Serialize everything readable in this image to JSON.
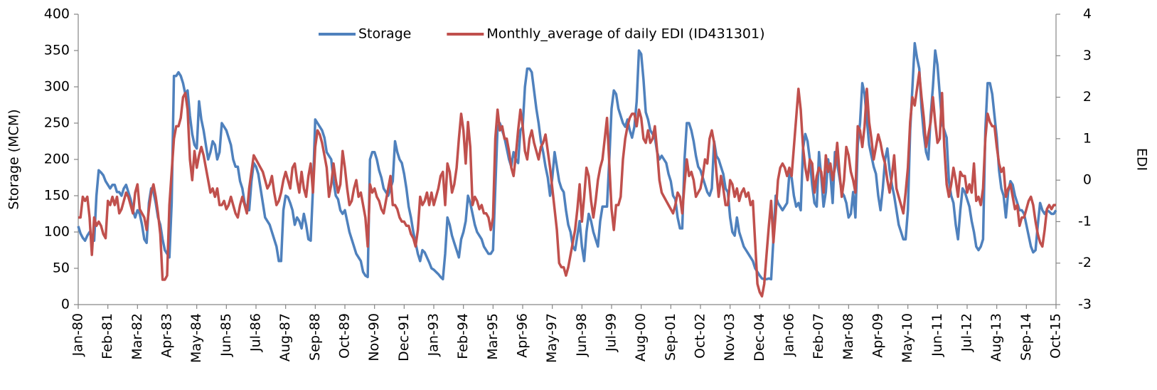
{
  "chart_data": {
    "type": "line",
    "ylabel": "Storage (MCM)",
    "y2label": "EDI",
    "legend": "top",
    "categories": [
      "Jan-80",
      null,
      null,
      null,
      null,
      null,
      null,
      null,
      null,
      null,
      null,
      null,
      null,
      "Feb-81",
      null,
      null,
      null,
      null,
      null,
      null,
      null,
      null,
      null,
      null,
      null,
      null,
      "Mar-82",
      null,
      null,
      null,
      null,
      null,
      null,
      null,
      null,
      null,
      null,
      null,
      null,
      "Apr-83",
      null,
      null,
      null,
      null,
      null,
      null,
      null,
      null,
      null,
      null,
      null,
      null,
      "May-84",
      null,
      null,
      null,
      null,
      null,
      null,
      null,
      null,
      null,
      null,
      null,
      null,
      "Jun-85",
      null,
      null,
      null,
      null,
      null,
      null,
      null,
      null,
      null,
      null,
      null,
      null,
      "Jul-86",
      null,
      null,
      null,
      null,
      null,
      null,
      null,
      null,
      null,
      null,
      null,
      null,
      "Aug-87",
      null,
      null,
      null,
      null,
      null,
      null,
      null,
      null,
      null,
      null,
      null,
      null,
      "Sep-88",
      null,
      null,
      null,
      null,
      null,
      null,
      null,
      null,
      null,
      null,
      null,
      null,
      "Oct-89",
      null,
      null,
      null,
      null,
      null,
      null,
      null,
      null,
      null,
      null,
      null,
      null,
      "Nov-90",
      null,
      null,
      null,
      null,
      null,
      null,
      null,
      null,
      null,
      null,
      null,
      null,
      "Dec-91",
      null,
      null,
      null,
      null,
      null,
      null,
      null,
      null,
      null,
      null,
      null,
      null,
      "Jan-93",
      null,
      null,
      null,
      null,
      null,
      null,
      null,
      null,
      null,
      null,
      null,
      null,
      "Feb-94",
      null,
      null,
      null,
      null,
      null,
      null,
      null,
      null,
      null,
      null,
      null,
      null,
      "Mar-95",
      null,
      null,
      null,
      null,
      null,
      null,
      null,
      null,
      null,
      null,
      null,
      null,
      "Apr-96",
      null,
      null,
      null,
      null,
      null,
      null,
      null,
      null,
      null,
      null,
      null,
      null,
      "May-97",
      null,
      null,
      null,
      null,
      null,
      null,
      null,
      null,
      null,
      null,
      null,
      null,
      "Jun-98",
      null,
      null,
      null,
      null,
      null,
      null,
      null,
      null,
      null,
      null,
      null,
      null,
      "Jul-99",
      null,
      null,
      null,
      null,
      null,
      null,
      null,
      null,
      null,
      null,
      null,
      null,
      "Aug-00",
      null,
      null,
      null,
      null,
      null,
      null,
      null,
      null,
      null,
      null,
      null,
      null,
      "Sep-01",
      null,
      null,
      null,
      null,
      null,
      null,
      null,
      null,
      null,
      null,
      null,
      null,
      "Oct-02",
      null,
      null,
      null,
      null,
      null,
      null,
      null,
      null,
      null,
      null,
      null,
      null,
      "Nov-03",
      null,
      null,
      null,
      null,
      null,
      null,
      null,
      null,
      null,
      null,
      null,
      null,
      "Dec-04",
      null,
      null,
      null,
      null,
      null,
      null,
      null,
      null,
      null,
      null,
      null,
      null,
      "Jan-06",
      null,
      null,
      null,
      null,
      null,
      null,
      null,
      null,
      null,
      null,
      null,
      null,
      "Feb-07",
      null,
      null,
      null,
      null,
      null,
      null,
      null,
      null,
      null,
      null,
      null,
      null,
      "Mar-08",
      null,
      null,
      null,
      null,
      null,
      null,
      null,
      null,
      null,
      null,
      null,
      null,
      "Apr-09",
      null,
      null,
      null,
      null,
      null,
      null,
      null,
      null,
      null,
      null,
      null,
      null,
      "May-10",
      null,
      null,
      null,
      null,
      null,
      null,
      null,
      null,
      null,
      null,
      null,
      null,
      "Jun-11",
      null,
      null,
      null,
      null,
      null,
      null,
      null,
      null,
      null,
      null,
      null,
      null,
      "Jul-12",
      null,
      null,
      null,
      null,
      null,
      null,
      null,
      null,
      null,
      null,
      null,
      null,
      "Aug-13",
      null,
      null,
      null,
      null,
      null,
      null,
      null,
      null,
      null,
      null,
      null,
      null,
      "Sep-14",
      null,
      null,
      null,
      null,
      null,
      null,
      null,
      null,
      null,
      null,
      null,
      null,
      "Oct-15"
    ],
    "series": [
      {
        "name": "Storage",
        "color": "#4f81bd",
        "values": [
          108,
          98,
          92,
          88,
          95,
          100,
          92,
          88,
          150,
          185,
          182,
          178,
          170,
          165,
          160,
          165,
          165,
          155,
          155,
          150,
          160,
          165,
          155,
          145,
          130,
          120,
          130,
          125,
          110,
          90,
          85,
          140,
          160,
          155,
          140,
          120,
          110,
          90,
          75,
          70,
          65,
          140,
          315,
          315,
          320,
          315,
          305,
          290,
          295,
          260,
          235,
          220,
          215,
          280,
          255,
          240,
          220,
          200,
          210,
          225,
          220,
          200,
          210,
          250,
          245,
          240,
          230,
          220,
          200,
          190,
          190,
          170,
          160,
          140,
          130,
          130,
          170,
          195,
          190,
          180,
          160,
          140,
          120,
          115,
          110,
          100,
          90,
          80,
          60,
          60,
          130,
          150,
          148,
          140,
          130,
          110,
          120,
          115,
          105,
          125,
          110,
          90,
          88,
          160,
          255,
          250,
          245,
          240,
          230,
          210,
          205,
          200,
          170,
          150,
          145,
          130,
          125,
          130,
          115,
          100,
          90,
          80,
          70,
          65,
          60,
          45,
          40,
          38,
          200,
          210,
          210,
          200,
          185,
          175,
          160,
          155,
          150,
          160,
          170,
          225,
          210,
          200,
          195,
          180,
          160,
          135,
          120,
          100,
          85,
          70,
          60,
          75,
          72,
          65,
          58,
          50,
          48,
          45,
          42,
          38,
          35,
          70,
          120,
          110,
          95,
          85,
          75,
          65,
          90,
          100,
          115,
          150,
          140,
          125,
          110,
          100,
          95,
          90,
          80,
          75,
          70,
          70,
          75,
          160,
          245,
          250,
          240,
          230,
          215,
          200,
          190,
          210,
          200,
          195,
          240,
          245,
          300,
          325,
          325,
          320,
          295,
          270,
          250,
          225,
          210,
          190,
          175,
          150,
          175,
          210,
          190,
          170,
          160,
          155,
          130,
          110,
          100,
          80,
          75,
          95,
          115,
          80,
          60,
          100,
          125,
          115,
          100,
          90,
          80,
          115,
          135,
          135,
          135,
          200,
          270,
          295,
          290,
          270,
          260,
          250,
          245,
          255,
          240,
          230,
          245,
          280,
          350,
          345,
          310,
          265,
          255,
          240,
          235,
          230,
          210,
          200,
          205,
          200,
          195,
          180,
          170,
          150,
          145,
          120,
          105,
          105,
          200,
          250,
          250,
          240,
          225,
          205,
          190,
          185,
          175,
          165,
          155,
          150,
          160,
          225,
          205,
          200,
          190,
          180,
          160,
          155,
          120,
          100,
          95,
          120,
          100,
          90,
          80,
          75,
          70,
          65,
          60,
          50,
          45,
          40,
          36,
          35,
          35,
          36,
          35,
          90,
          150,
          140,
          135,
          130,
          135,
          140,
          180,
          175,
          150,
          135,
          140,
          130,
          215,
          235,
          225,
          200,
          165,
          140,
          135,
          210,
          175,
          135,
          155,
          200,
          180,
          140,
          210,
          195,
          175,
          155,
          150,
          140,
          120,
          125,
          155,
          120,
          220,
          250,
          305,
          290,
          255,
          220,
          205,
          190,
          180,
          150,
          130,
          160,
          200,
          215,
          185,
          165,
          150,
          130,
          110,
          100,
          90,
          90,
          130,
          240,
          300,
          360,
          340,
          325,
          270,
          235,
          210,
          200,
          260,
          300,
          350,
          330,
          290,
          250,
          240,
          230,
          170,
          150,
          140,
          110,
          90,
          130,
          160,
          155,
          145,
          135,
          115,
          100,
          80,
          75,
          80,
          90,
          240,
          305,
          305,
          290,
          260,
          230,
          185,
          160,
          150,
          120,
          155,
          170,
          165,
          150,
          140,
          130,
          130,
          125,
          110,
          95,
          80,
          72,
          75,
          110,
          140,
          130,
          125,
          130,
          128,
          125,
          125,
          130
        ]
      },
      {
        "name": "Monthly_average of daily EDI (ID431301)",
        "color": "#c0504d",
        "axis": "y2",
        "values": [
          -0.9,
          -0.9,
          -0.4,
          -0.5,
          -0.4,
          -0.9,
          -1.8,
          -0.9,
          -1.1,
          -1.0,
          -1.1,
          -1.3,
          -1.4,
          -0.5,
          -0.6,
          -0.4,
          -0.6,
          -0.4,
          -0.8,
          -0.7,
          -0.5,
          -0.3,
          -0.4,
          -0.6,
          -0.8,
          -0.3,
          -0.1,
          -0.7,
          -0.8,
          -0.9,
          -1.2,
          -0.7,
          -0.3,
          -0.1,
          -0.4,
          -0.8,
          -1.3,
          -2.4,
          -2.4,
          -2.3,
          -0.6,
          0.2,
          1.0,
          1.3,
          1.3,
          1.5,
          2.0,
          2.1,
          1.7,
          0.5,
          0.0,
          0.7,
          0.3,
          0.6,
          0.8,
          0.6,
          0.3,
          0.0,
          -0.3,
          -0.2,
          -0.4,
          -0.2,
          -0.6,
          -0.6,
          -0.5,
          -0.7,
          -0.6,
          -0.4,
          -0.6,
          -0.8,
          -0.9,
          -0.6,
          -0.4,
          -0.6,
          -0.8,
          -0.2,
          0.2,
          0.6,
          0.5,
          0.4,
          0.3,
          0.2,
          0.0,
          -0.2,
          -0.1,
          0.1,
          -0.3,
          -0.6,
          -0.5,
          -0.3,
          0.0,
          0.2,
          0.0,
          -0.2,
          0.3,
          0.4,
          0.0,
          -0.3,
          0.2,
          -0.2,
          -0.4,
          0.1,
          0.4,
          -0.3,
          0.8,
          1.2,
          1.1,
          0.9,
          0.6,
          0.3,
          -0.4,
          -0.1,
          0.4,
          0.0,
          -0.3,
          -0.1,
          0.7,
          0.3,
          -0.2,
          -0.6,
          -0.5,
          -0.2,
          0.0,
          -0.4,
          -0.3,
          -0.6,
          -0.9,
          -1.6,
          -0.1,
          -0.3,
          -0.2,
          -0.4,
          -0.5,
          -0.7,
          -0.8,
          -0.5,
          -0.2,
          0.1,
          -0.6,
          -0.6,
          -0.7,
          -0.9,
          -1.0,
          -1.0,
          -1.1,
          -1.1,
          -1.3,
          -1.4,
          -1.6,
          -1.2,
          -0.4,
          -0.6,
          -0.5,
          -0.3,
          -0.6,
          -0.3,
          -0.6,
          -0.4,
          -0.2,
          0.1,
          0.2,
          -0.6,
          0.4,
          0.2,
          -0.3,
          -0.1,
          0.3,
          1.0,
          1.6,
          1.2,
          0.4,
          1.4,
          0.8,
          -0.6,
          -0.4,
          -0.5,
          -0.7,
          -0.6,
          -0.8,
          -0.8,
          -0.9,
          -1.2,
          -0.9,
          1.0,
          1.7,
          1.2,
          1.3,
          1.0,
          1.0,
          0.7,
          0.3,
          0.1,
          0.6,
          1.2,
          1.7,
          1.3,
          0.7,
          0.5,
          1.0,
          1.2,
          0.9,
          0.7,
          0.5,
          0.8,
          0.9,
          1.1,
          0.7,
          0.3,
          -0.2,
          -0.7,
          -1.2,
          -2.0,
          -2.1,
          -2.1,
          -2.3,
          -2.1,
          -1.8,
          -1.5,
          -1.2,
          -0.7,
          -0.1,
          -1.0,
          -0.4,
          0.3,
          0.1,
          -0.5,
          -0.9,
          -0.5,
          0.0,
          0.3,
          0.5,
          1.0,
          1.5,
          0.4,
          -0.7,
          -1.2,
          -0.6,
          -0.6,
          -0.4,
          0.5,
          1.0,
          1.3,
          1.5,
          1.6,
          1.6,
          1.3,
          1.7,
          1.5,
          1.0,
          0.9,
          1.2,
          0.9,
          1.0,
          1.3,
          0.7,
          0.0,
          -0.3,
          -0.4,
          -0.5,
          -0.6,
          -0.7,
          -0.8,
          -0.6,
          -0.3,
          -0.4,
          -0.8,
          -0.1,
          0.5,
          0.1,
          0.2,
          0.0,
          -0.4,
          -0.3,
          -0.2,
          0.1,
          0.5,
          0.4,
          1.0,
          1.2,
          0.9,
          0.2,
          -0.4,
          0.1,
          -0.2,
          -0.6,
          -0.6,
          0.0,
          -0.1,
          -0.4,
          -0.2,
          -0.5,
          -0.3,
          -0.2,
          -0.4,
          -0.3,
          -0.6,
          -0.5,
          -1.5,
          -2.5,
          -2.7,
          -2.8,
          -2.5,
          -1.8,
          -1.1,
          -0.5,
          -1.5,
          -0.8,
          0.0,
          0.3,
          0.4,
          0.3,
          0.1,
          0.3,
          0.1,
          0.8,
          1.5,
          2.2,
          1.7,
          0.8,
          0.3,
          0.0,
          0.5,
          0.4,
          -0.3,
          0.1,
          0.3,
          0.2,
          -0.3,
          0.6,
          0.2,
          0.4,
          0.0,
          0.3,
          0.9,
          0.2,
          -0.4,
          0.0,
          0.8,
          0.6,
          0.2,
          0.0,
          -0.3,
          1.3,
          1.2,
          0.8,
          1.3,
          2.2,
          1.4,
          1.0,
          0.5,
          0.8,
          1.1,
          0.9,
          0.6,
          0.4,
          0.0,
          -0.3,
          0.1,
          0.6,
          -0.2,
          -0.4,
          -0.6,
          -0.8,
          -0.3,
          0.3,
          1.4,
          2.0,
          1.8,
          2.2,
          2.6,
          2.0,
          1.5,
          0.8,
          1.1,
          1.4,
          2.0,
          1.4,
          0.9,
          1.0,
          2.1,
          0.8,
          -0.1,
          -0.4,
          -0.1,
          0.3,
          0.0,
          -0.4,
          0.2,
          0.1,
          0.1,
          -0.3,
          -0.1,
          -0.3,
          0.4,
          -0.5,
          -0.4,
          -0.6,
          -0.2,
          1.0,
          1.6,
          1.4,
          1.3,
          1.3,
          0.8,
          0.4,
          0.2,
          0.3,
          -0.4,
          -0.2,
          -0.1,
          -0.4,
          -0.7,
          -0.6,
          -1.1,
          -0.9,
          -0.9,
          -0.7,
          -0.5,
          -0.4,
          -0.6,
          -1.0,
          -1.3,
          -1.5,
          -1.6,
          -1.2,
          -0.7,
          -0.6,
          -0.7,
          -0.6,
          -0.6
        ]
      }
    ],
    "ylim": [
      0,
      400
    ],
    "yticks": [
      0,
      50,
      100,
      150,
      200,
      250,
      300,
      350,
      400
    ],
    "y2lim": [
      -3,
      4
    ],
    "y2ticks": [
      -3,
      -2,
      -1,
      0,
      1,
      2,
      3,
      4
    ]
  }
}
